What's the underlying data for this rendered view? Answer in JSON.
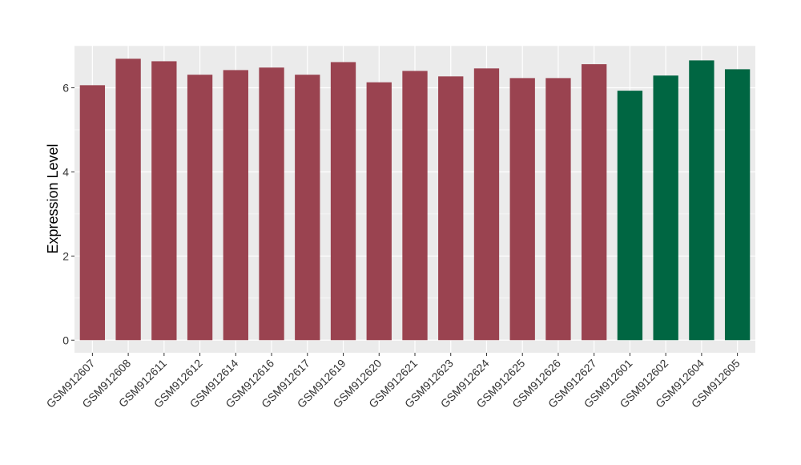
{
  "chart_data": {
    "type": "bar",
    "title": "",
    "xlabel": "",
    "ylabel": "Expression Level",
    "ylim": [
      -0.3,
      7
    ],
    "yticks": [
      0,
      2,
      4,
      6
    ],
    "grid": true,
    "legend": "none",
    "colors": {
      "group_a": "#9a4350",
      "group_b": "#006642",
      "panel": "#ebebeb",
      "gridline": "#ffffff"
    },
    "categories": [
      "GSM912607",
      "GSM912608",
      "GSM912611",
      "GSM912612",
      "GSM912614",
      "GSM912616",
      "GSM912617",
      "GSM912619",
      "GSM912620",
      "GSM912621",
      "GSM912623",
      "GSM912624",
      "GSM912625",
      "GSM912626",
      "GSM912627",
      "GSM912601",
      "GSM912602",
      "GSM912604",
      "GSM912605"
    ],
    "values": [
      6.06,
      6.69,
      6.63,
      6.31,
      6.42,
      6.48,
      6.31,
      6.61,
      6.13,
      6.4,
      6.27,
      6.46,
      6.23,
      6.23,
      6.56,
      5.93,
      6.29,
      6.65,
      6.44
    ],
    "groups": [
      "a",
      "a",
      "a",
      "a",
      "a",
      "a",
      "a",
      "a",
      "a",
      "a",
      "a",
      "a",
      "a",
      "a",
      "a",
      "b",
      "b",
      "b",
      "b"
    ]
  }
}
